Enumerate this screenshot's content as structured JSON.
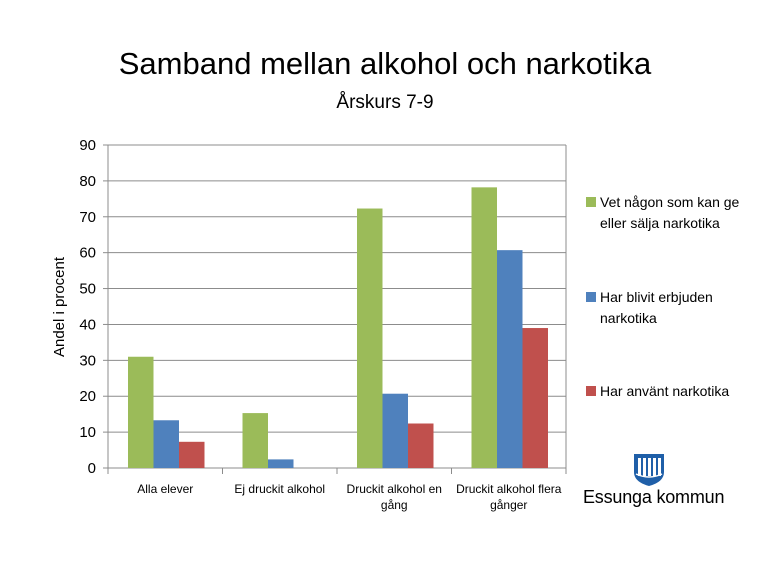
{
  "title": "Samband mellan alkohol och narkotika",
  "subtitle": "Årskurs 7-9",
  "chart_data": {
    "type": "bar",
    "title": "Samband mellan alkohol och narkotika",
    "subtitle": "Årskurs 7-9",
    "xlabel": "",
    "ylabel": "Andel i procent",
    "ylim": [
      0,
      90
    ],
    "yticks": [
      "0",
      "10",
      "20",
      "30",
      "40",
      "50",
      "60",
      "70",
      "80",
      "90"
    ],
    "grid": true,
    "legend_position": "right",
    "categories": [
      "Alla elever",
      "Ej druckit alkohol",
      "Druckit alkohol en gång",
      "Druckit alkohol flera gånger"
    ],
    "series": [
      {
        "name": "Vet någon som kan ge eller sälja narkotika",
        "color": "#9BBB59",
        "values": [
          31,
          15.3,
          72.3,
          78.2
        ]
      },
      {
        "name": "Har blivit erbjuden narkotika",
        "color": "#4F81BD",
        "values": [
          13.3,
          2.4,
          20.7,
          60.7
        ]
      },
      {
        "name": "Har använt narkotika",
        "color": "#C0504D",
        "values": [
          7.3,
          0,
          12.4,
          39
        ]
      }
    ]
  },
  "logo": {
    "text": "Essunga kommun",
    "icon": "essunga-coat-of-arms-icon",
    "color": "#1F5FA8"
  }
}
